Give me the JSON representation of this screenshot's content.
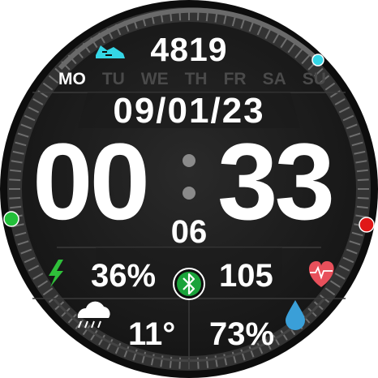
{
  "steps": {
    "value": "4819"
  },
  "weekdays": [
    "MO",
    "TU",
    "WE",
    "TH",
    "FR",
    "SA",
    "SU"
  ],
  "active_weekday": "MO",
  "date": {
    "value": "09/01/23"
  },
  "time": {
    "hours": "00",
    "minutes": "33",
    "seconds": "06"
  },
  "battery": {
    "value": "36%"
  },
  "heart_rate": {
    "value": "105"
  },
  "weather": {
    "temperature": "11°"
  },
  "humidity": {
    "value": "73%"
  },
  "colors": {
    "accent_cyan": "#35d6e6",
    "bezel_green": "#23c03a",
    "bezel_red": "#e01818",
    "heart": "#e8505b",
    "bluetooth": "#1aa33a",
    "water": "#3a9fd8",
    "lightning": "#2fbf3a"
  },
  "icons": [
    "shoe-icon",
    "lightning-icon",
    "bluetooth-icon",
    "heart-icon",
    "rain-cloud-icon",
    "water-drop-icon"
  ]
}
